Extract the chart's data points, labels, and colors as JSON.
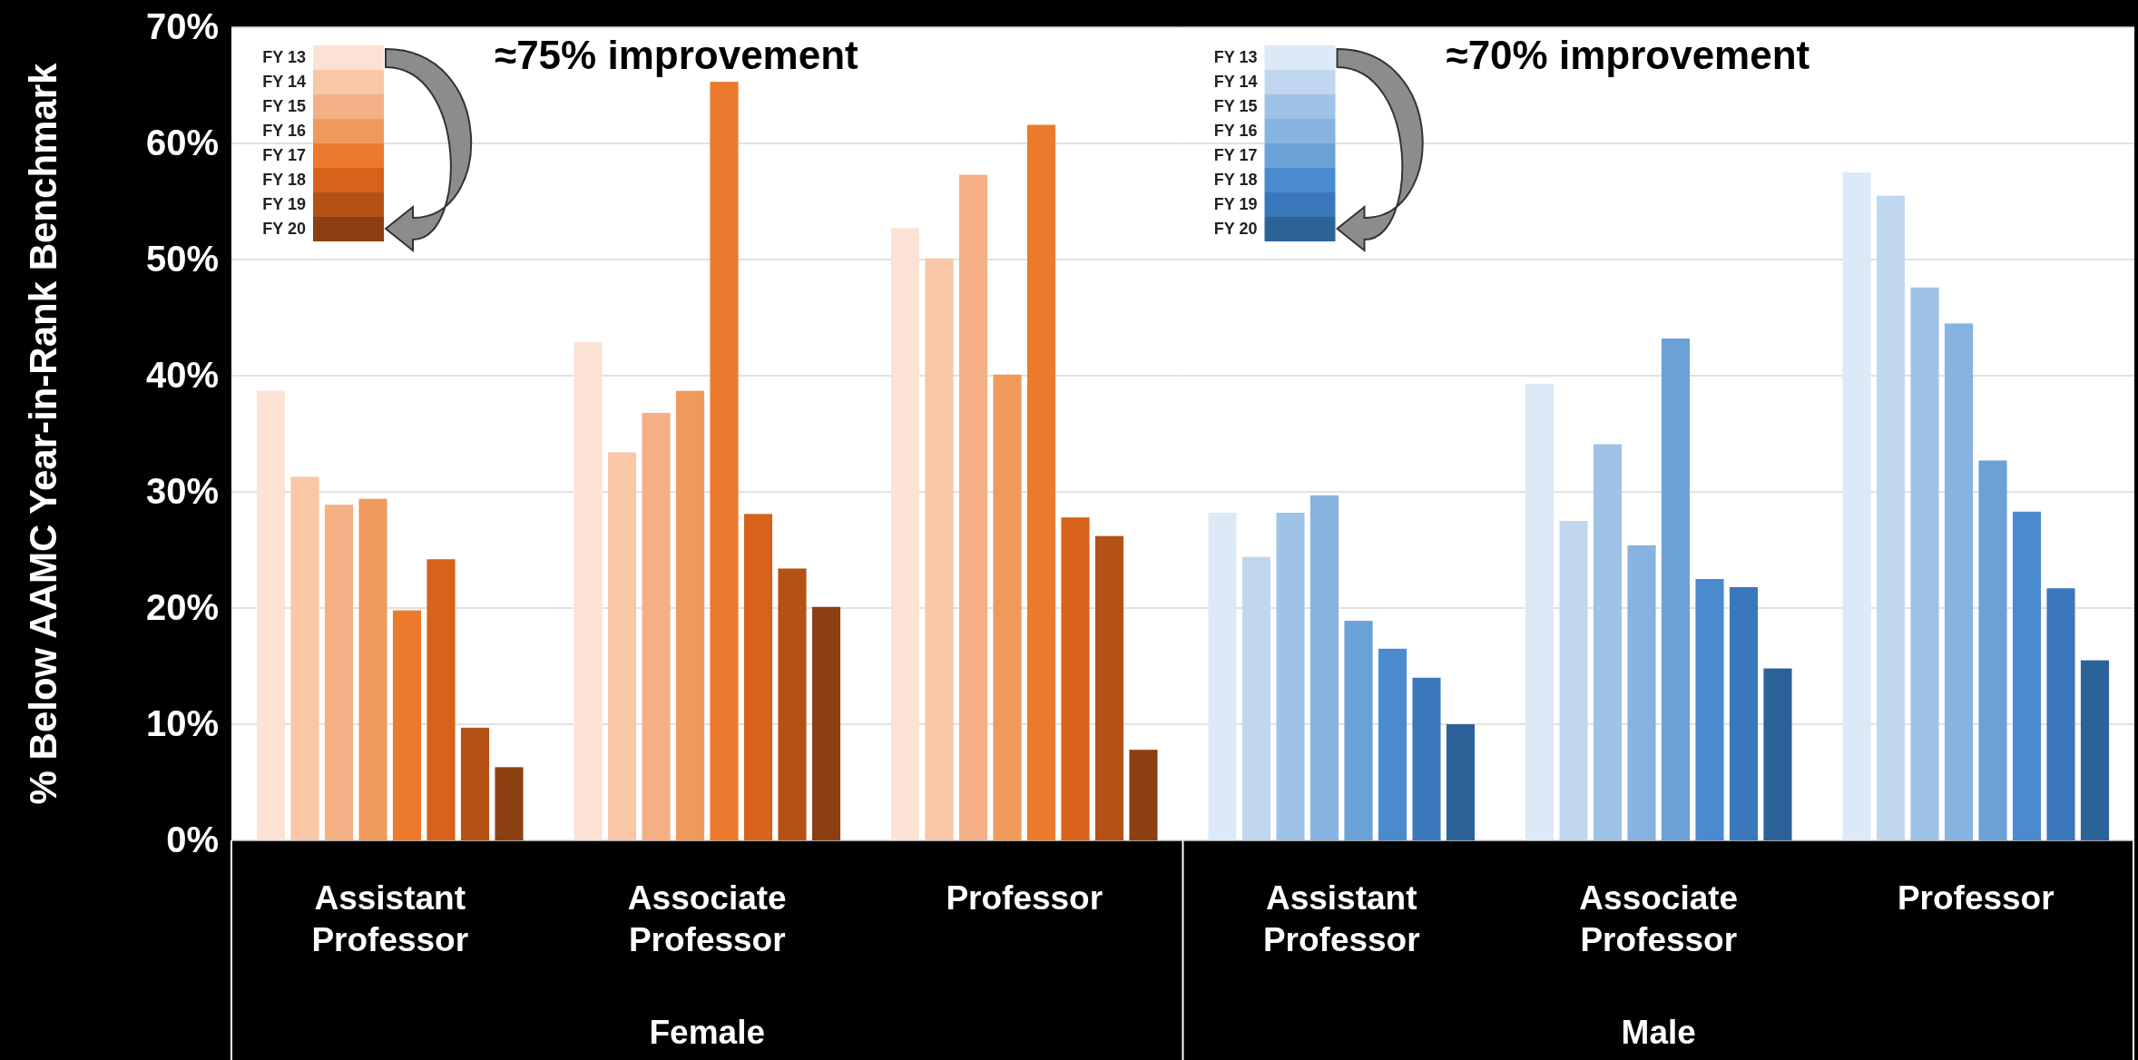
{
  "chart_data": [
    {
      "type": "bar",
      "categories": [
        "Assistant Professor",
        "Associate Professor",
        "Professor"
      ],
      "xlabel": "Female",
      "ylabel": "% Below AAMC Year-in-Rank Benchmark",
      "ylim": [
        0,
        70
      ],
      "yticks": [
        {
          "value": 0,
          "label": "0%"
        },
        {
          "value": 10,
          "label": "10%"
        },
        {
          "value": 20,
          "label": "20%"
        },
        {
          "value": 30,
          "label": "30%"
        },
        {
          "value": 40,
          "label": "40%"
        },
        {
          "value": 50,
          "label": "50%"
        },
        {
          "value": 60,
          "label": "60%"
        },
        {
          "value": 70,
          "label": "70%"
        }
      ],
      "grid": "y",
      "legend": "top left",
      "annotations": [
        "≈75% improvement"
      ],
      "series": [
        {
          "name": "FY 13",
          "color": "#fbe2d5",
          "values": [
            38.7,
            42.9,
            52.7
          ]
        },
        {
          "name": "FY 14",
          "color": "#f7c7a6",
          "values": [
            31.3,
            33.4,
            50.1
          ]
        },
        {
          "name": "FY 15",
          "color": "#f4b084",
          "values": [
            28.9,
            36.8,
            57.3
          ]
        },
        {
          "name": "FY 16",
          "color": "#ef9a5c",
          "values": [
            29.4,
            38.7,
            40.1
          ]
        },
        {
          "name": "FY 17",
          "color": "#ec7a2c",
          "values": [
            19.8,
            65.3,
            61.6
          ]
        },
        {
          "name": "FY 18",
          "color": "#d8621a",
          "values": [
            24.2,
            28.1,
            27.8
          ]
        },
        {
          "name": "FY 19",
          "color": "#b45216",
          "values": [
            9.7,
            23.4,
            26.2
          ]
        },
        {
          "name": "FY 20",
          "color": "#8c4012",
          "values": [
            6.3,
            20.1,
            7.8
          ]
        }
      ]
    },
    {
      "type": "bar",
      "categories": [
        "Assistant Professor",
        "Associate Professor",
        "Professor"
      ],
      "xlabel": "Male",
      "ylim": [
        0,
        70
      ],
      "yticks": [
        {
          "value": 0,
          "label": null
        },
        {
          "value": 10,
          "label": null
        },
        {
          "value": 20,
          "label": null
        },
        {
          "value": 30,
          "label": null
        },
        {
          "value": 40,
          "label": null
        },
        {
          "value": 50,
          "label": null
        },
        {
          "value": 60,
          "label": null
        },
        {
          "value": 70,
          "label": null
        }
      ],
      "grid": "y",
      "legend": "top left",
      "tick_labels": "x",
      "annotations": [
        "≈70% improvement"
      ],
      "series": [
        {
          "name": "FY 13",
          "color": "#dce9f6",
          "values": [
            28.2,
            39.3,
            57.5
          ]
        },
        {
          "name": "FY 14",
          "color": "#c0d7ef",
          "values": [
            24.4,
            27.5,
            55.5
          ]
        },
        {
          "name": "FY 15",
          "color": "#9fc3e6",
          "values": [
            28.2,
            34.1,
            47.6
          ]
        },
        {
          "name": "FY 16",
          "color": "#86b3e0",
          "values": [
            29.7,
            25.4,
            44.5
          ]
        },
        {
          "name": "FY 17",
          "color": "#6aa1d7",
          "values": [
            18.9,
            43.2,
            32.7
          ]
        },
        {
          "name": "FY 18",
          "color": "#4a8bd0",
          "values": [
            16.5,
            22.5,
            28.3
          ]
        },
        {
          "name": "FY 19",
          "color": "#3a78bb",
          "values": [
            14.0,
            21.8,
            21.7
          ]
        },
        {
          "name": "FY 20",
          "color": "#2b6399",
          "values": [
            10.0,
            14.8,
            15.5
          ]
        }
      ]
    }
  ]
}
